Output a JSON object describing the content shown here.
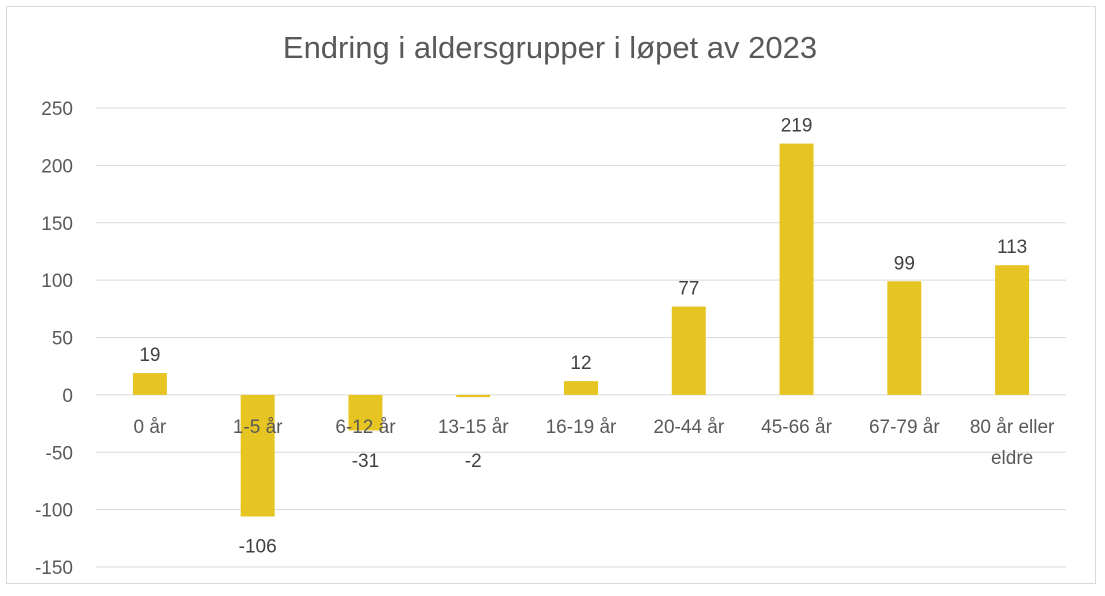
{
  "chart_data": {
    "type": "bar",
    "title": "Endring i aldersgrupper i løpet av 2023",
    "categories": [
      "0 år",
      "1-5 år",
      "6-12 år",
      "13-15 år",
      "16-19 år",
      "20-44 år",
      "45-66 år",
      "67-79 år",
      "80 år eller eldre"
    ],
    "category_lines": [
      [
        "0 år"
      ],
      [
        "1-5 år"
      ],
      [
        "6-12 år"
      ],
      [
        "13-15 år"
      ],
      [
        "16-19 år"
      ],
      [
        "20-44 år"
      ],
      [
        "45-66 år"
      ],
      [
        "67-79 år"
      ],
      [
        "80 år eller",
        "eldre"
      ]
    ],
    "values": [
      19,
      -106,
      -31,
      -2,
      12,
      77,
      219,
      99,
      113
    ],
    "data_labels": [
      "19",
      "-106",
      "-31",
      "-2",
      "12",
      "77",
      "219",
      "99",
      "113"
    ],
    "ylim": [
      -150,
      250
    ],
    "yticks": [
      250,
      200,
      150,
      100,
      50,
      0,
      -50,
      -100,
      -150
    ],
    "ytick_labels": [
      "250",
      "200",
      "150",
      "100",
      "50",
      "0",
      "-50",
      "-100",
      "-150"
    ],
    "grid": true,
    "legend": "none",
    "colors": {
      "bar": "#e6c522",
      "grid": "#d9d9d9",
      "text": "#595959",
      "frame": "#d9d9d9"
    }
  }
}
